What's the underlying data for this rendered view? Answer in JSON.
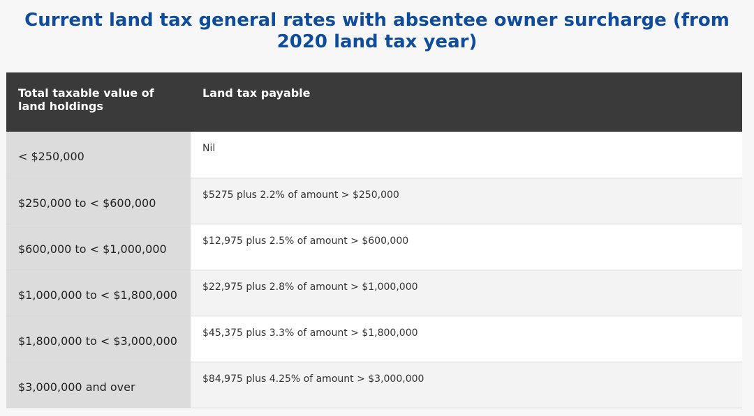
{
  "title": "Current land tax general rates with absentee owner surcharge (from 2020 land tax year)",
  "table": {
    "headers": [
      "Total taxable value of land holdings",
      "Land tax payable"
    ],
    "rows": [
      [
        "< $250,000",
        "Nil"
      ],
      [
        "$250,000 to < $600,000",
        "$5275 plus 2.2% of amount > $250,000"
      ],
      [
        "$600,000 to < $1,000,000",
        "$12,975 plus 2.5% of amount > $600,000"
      ],
      [
        "$1,000,000 to < $1,800,000",
        "$22,975 plus 2.8% of amount > $1,000,000"
      ],
      [
        "$1,800,000 to < $3,000,000",
        "$45,375 plus 3.3% of amount > $1,800,000"
      ],
      [
        "$3,000,000 and over",
        "$84,975 plus 4.25% of amount > $3,000,000"
      ]
    ]
  }
}
